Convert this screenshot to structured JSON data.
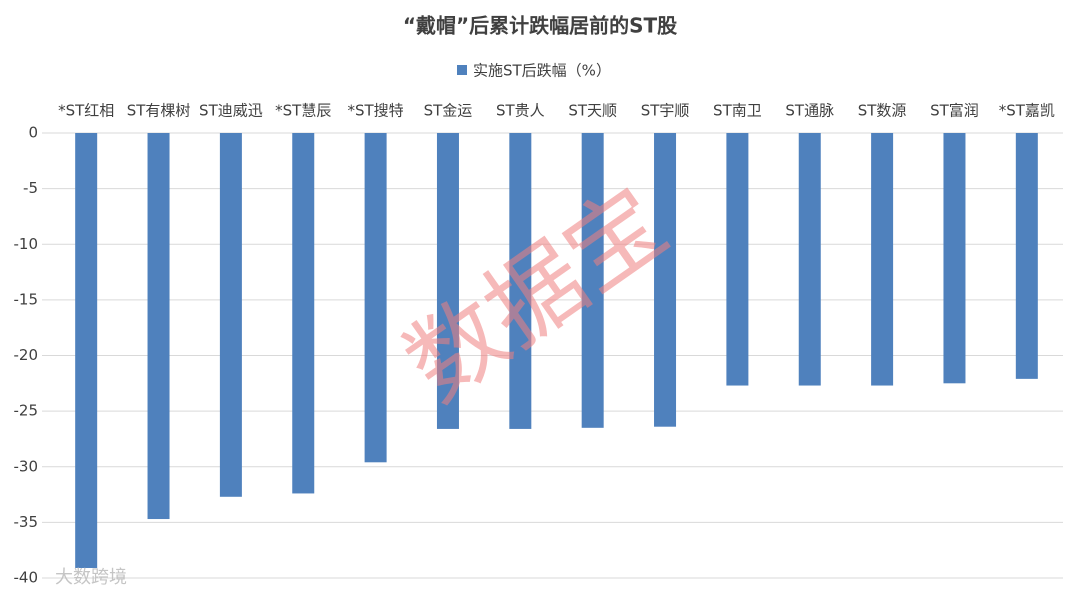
{
  "chart_data": {
    "type": "bar",
    "title": "“戴帽”后累计跌幅居前的ST股",
    "categories": [
      "*ST红相",
      "ST有棵树",
      "ST迪威迅",
      "*ST慧辰",
      "*ST搜特",
      "ST金运",
      "ST贵人",
      "ST天顺",
      "ST宇顺",
      "ST南卫",
      "ST通脉",
      "ST数源",
      "ST富润",
      "*ST嘉凯"
    ],
    "series": [
      {
        "name": "实施ST后跌幅（%）",
        "color": "#4f81bd",
        "values": [
          -39.1,
          -34.7,
          -32.7,
          -32.4,
          -29.6,
          -26.6,
          -26.6,
          -26.5,
          -26.4,
          -22.7,
          -22.7,
          -22.7,
          -22.5,
          -22.1
        ]
      }
    ],
    "ylim": [
      -40,
      0
    ],
    "yticks": [
      0,
      -5,
      -10,
      -15,
      -20,
      -25,
      -30,
      -35,
      -40
    ],
    "grid": true,
    "watermark": "数据宝",
    "source_mark": "大数跨境"
  }
}
